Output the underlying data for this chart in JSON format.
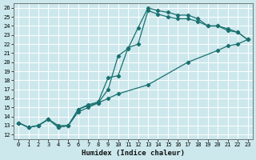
{
  "xlabel": "Humidex (Indice chaleur)",
  "bg_color": "#cce8ec",
  "grid_color": "#ffffff",
  "line_color": "#1a7070",
  "xlim": [
    -0.5,
    23.5
  ],
  "ylim": [
    11.5,
    26.5
  ],
  "xticks": [
    0,
    1,
    2,
    3,
    4,
    5,
    6,
    7,
    8,
    9,
    10,
    11,
    12,
    13,
    14,
    15,
    16,
    17,
    18,
    19,
    20,
    21,
    22,
    23
  ],
  "yticks": [
    12,
    13,
    14,
    15,
    16,
    17,
    18,
    19,
    20,
    21,
    22,
    23,
    24,
    25,
    26
  ],
  "line1_x": [
    0,
    1,
    2,
    3,
    4,
    5,
    6,
    7,
    8,
    9,
    10,
    11,
    12,
    13,
    14,
    15,
    16,
    17,
    18,
    19,
    20,
    21,
    22,
    23
  ],
  "line1_y": [
    13.3,
    12.8,
    13.0,
    13.7,
    13.0,
    13.0,
    14.8,
    15.2,
    15.5,
    17.0,
    20.7,
    21.5,
    23.8,
    26.0,
    25.7,
    25.5,
    25.2,
    25.2,
    24.8,
    24.0,
    24.0,
    23.7,
    23.3,
    22.5
  ],
  "line2_x": [
    0,
    1,
    2,
    3,
    4,
    5,
    6,
    7,
    8,
    9,
    10,
    11,
    12,
    13,
    14,
    15,
    16,
    17,
    18,
    19,
    20,
    21,
    22,
    23
  ],
  "line2_y": [
    13.3,
    12.8,
    13.0,
    13.7,
    12.8,
    13.0,
    14.8,
    15.3,
    15.6,
    18.3,
    18.5,
    21.6,
    22.0,
    25.7,
    25.3,
    25.0,
    24.8,
    24.8,
    24.5,
    24.0,
    24.0,
    23.5,
    23.3,
    22.5
  ],
  "line3_x": [
    0,
    1,
    2,
    3,
    4,
    5,
    6,
    7,
    8,
    9,
    10,
    13,
    17,
    20,
    21,
    22,
    23
  ],
  "line3_y": [
    13.3,
    12.8,
    13.0,
    13.7,
    12.8,
    13.0,
    14.5,
    15.0,
    15.5,
    16.0,
    16.5,
    17.5,
    20.0,
    21.3,
    21.8,
    22.0,
    22.5
  ]
}
